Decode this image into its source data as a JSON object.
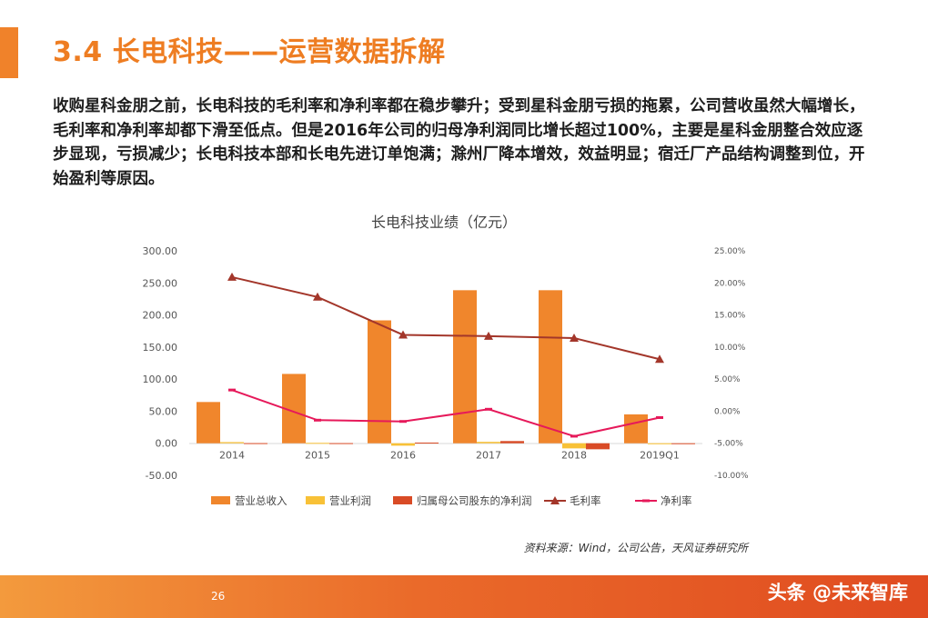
{
  "slide": {
    "title": "3.4 长电科技——运营数据拆解",
    "body": "收购星科金朋之前，长电科技的毛利率和净利率都在稳步攀升；受到星科金朋亏损的拖累，公司营收虽然大幅增长，毛利率和净利率却都下滑至低点。但是2016年公司的归母净利润同比增长超过100%，主要是星科金朋整合效应逐步显现，亏损减少；长电科技本部和长电先进订单饱满；滁州厂降本增效，效益明显；宿迁厂产品结构调整到位，开始盈利等原因。",
    "source": "资料来源：Wind，公司公告，天风证券研究所",
    "page_number": "26",
    "watermark": "头条 @未来智库",
    "accent_color": "#ee7d22"
  },
  "chart_data": {
    "type": "bar",
    "title": "长电科技业绩（亿元）",
    "categories": [
      "2014",
      "2015",
      "2016",
      "2017",
      "2018",
      "2019Q1"
    ],
    "y_left": {
      "ylim": [
        -50,
        300
      ],
      "ticks": [
        "300.00",
        "250.00",
        "200.00",
        "150.00",
        "100.00",
        "50.00",
        "0.00",
        "-50.00"
      ]
    },
    "y_right": {
      "ylim": [
        -10,
        25
      ],
      "ticks": [
        "25.00%",
        "20.00%",
        "15.00%",
        "10.00%",
        "5.00%",
        "0.00%",
        "-5.00%",
        "-10.00%"
      ]
    },
    "bar_series": [
      {
        "name": "营业总收入",
        "color": "#f0862c",
        "values": [
          64.3,
          108.1,
          191.6,
          238.6,
          238.6,
          45.0
        ]
      },
      {
        "name": "营业利润",
        "color": "#f8c137",
        "values": [
          1.8,
          0.6,
          -3.8,
          2.2,
          -8.0,
          -1.5
        ]
      },
      {
        "name": "归属母公司股东的净利润",
        "color": "#d94b26",
        "values": [
          0.2,
          0.2,
          1.0,
          3.4,
          -9.4,
          -0.9
        ]
      }
    ],
    "line_series": [
      {
        "name": "毛利率",
        "color": "#a3362a",
        "marker": "triangle",
        "values": [
          20.9,
          17.8,
          11.9,
          11.7,
          11.4,
          8.1
        ]
      },
      {
        "name": "净利率",
        "color": "#e6195a",
        "marker": "dash",
        "values": [
          3.3,
          -1.4,
          -1.6,
          0.3,
          -3.9,
          -1.0
        ]
      }
    ],
    "legend_position": "bottom",
    "grid": false
  }
}
